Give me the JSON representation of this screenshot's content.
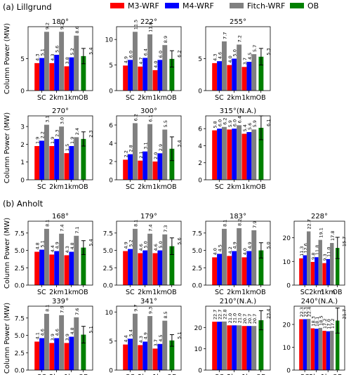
{
  "legend": [
    {
      "name": "M3-WRF",
      "color": "#ff0000"
    },
    {
      "name": "M4-WRF",
      "color": "#0000ff"
    },
    {
      "name": "Fitch-WRF",
      "color": "#808080"
    },
    {
      "name": "OB",
      "color": "#008000"
    }
  ],
  "sections": [
    {
      "label": "(a) Lillgrund"
    },
    {
      "label": "(b) Anholt"
    }
  ],
  "ylabel": "Column Power (MW)",
  "categories": [
    "SC",
    "2km",
    "1km",
    "OB"
  ],
  "chart_data": [
    {
      "type": "bar",
      "title": "180°",
      "ylim": [
        0,
        10
      ],
      "yticks": [
        0,
        5
      ],
      "series": [
        {
          "name": "M3-WRF",
          "values": [
            4.3,
            4.3,
            3.8
          ]
        },
        {
          "name": "M4-WRF",
          "values": [
            5.1,
            5.6,
            5.2
          ]
        },
        {
          "name": "Fitch-WRF",
          "values": [
            9.2,
            9.2,
            8.6
          ]
        },
        {
          "name": "OB",
          "values": [
            5.4
          ],
          "error": 1.2
        }
      ]
    },
    {
      "type": "bar",
      "title": "222°",
      "ylim": [
        0,
        12.5
      ],
      "yticks": [
        0,
        5,
        10
      ],
      "series": [
        {
          "name": "M3-WRF",
          "values": [
            4.9,
            4.7,
            4.0
          ]
        },
        {
          "name": "M4-WRF",
          "values": [
            6.0,
            6.4,
            6.0
          ]
        },
        {
          "name": "Fitch-WRF",
          "values": [
            11.5,
            11.0,
            8.9
          ]
        },
        {
          "name": "OB",
          "values": [
            6.2
          ],
          "error": 1.6
        }
      ]
    },
    {
      "type": "bar",
      "title": "255°",
      "ylim": [
        0,
        10
      ],
      "yticks": [
        0,
        5
      ],
      "series": [
        {
          "name": "M3-WRF",
          "values": [
            4.3,
            4.0,
            3.7
          ]
        },
        {
          "name": "M4-WRF",
          "values": [
            4.6,
            5.0,
            4.5
          ]
        },
        {
          "name": "Fitch-WRF",
          "values": [
            7.7,
            7.2,
            5.7
          ]
        },
        {
          "name": "OB",
          "values": [
            5.3
          ],
          "error": 1.3
        }
      ]
    },
    {
      "type": "bar",
      "title": "270°",
      "ylim": [
        0,
        3.6
      ],
      "yticks": [
        0,
        1,
        2,
        3
      ],
      "series": [
        {
          "name": "M3-WRF",
          "values": [
            1.9,
            1.9,
            1.5
          ]
        },
        {
          "name": "M4-WRF",
          "values": [
            2.2,
            2.3,
            1.9
          ]
        },
        {
          "name": "Fitch-WRF",
          "values": [
            3.1,
            3.0,
            2.4
          ]
        },
        {
          "name": "OB",
          "values": [
            2.3
          ],
          "error": 0.4
        }
      ]
    },
    {
      "type": "bar",
      "title": "300°",
      "ylim": [
        0,
        7
      ],
      "yticks": [
        0,
        2,
        4,
        6
      ],
      "series": [
        {
          "name": "M3-WRF",
          "values": [
            2.2,
            2.1,
            2.0
          ]
        },
        {
          "name": "M4-WRF",
          "values": [
            2.8,
            3.1,
            2.9
          ]
        },
        {
          "name": "Fitch-WRF",
          "values": [
            6.2,
            6.1,
            5.5
          ]
        },
        {
          "name": "OB",
          "values": [
            3.4
          ],
          "error": 1.3
        }
      ]
    },
    {
      "type": "bar",
      "title": "315°(N.A.)",
      "ylim": [
        0,
        7.5
      ],
      "yticks": [
        0,
        2,
        4,
        6
      ],
      "series": [
        {
          "name": "M3-WRF",
          "values": [
            5.8,
            5.9,
            5.4
          ]
        },
        {
          "name": "M4-WRF",
          "values": [
            6.0,
            6.0,
            5.6
          ]
        },
        {
          "name": "Fitch-WRF",
          "values": [
            6.2,
            6.4,
            5.9
          ]
        },
        {
          "name": "OB",
          "values": [
            6.1
          ],
          "error": 1.4
        }
      ]
    },
    {
      "type": "bar",
      "title": "168°",
      "ylim": [
        0,
        9.2
      ],
      "yticks": [
        0,
        2.5,
        5.0,
        7.5
      ],
      "series": [
        {
          "name": "M3-WRF",
          "values": [
            4.8,
            4.4,
            4.3
          ]
        },
        {
          "name": "M4-WRF",
          "values": [
            5.1,
            4.9,
            4.8
          ]
        },
        {
          "name": "Fitch-WRF",
          "values": [
            8.1,
            7.4,
            7.1
          ]
        },
        {
          "name": "OB",
          "values": [
            5.4
          ],
          "error": 1.0
        }
      ]
    },
    {
      "type": "bar",
      "title": "179°",
      "ylim": [
        0,
        9.2
      ],
      "yticks": [
        0,
        2.5,
        5.0,
        7.5
      ],
      "series": [
        {
          "name": "M3-WRF",
          "values": [
            4.9,
            4.6,
            4.6
          ]
        },
        {
          "name": "M4-WRF",
          "values": [
            5.2,
            5.0,
            5.0
          ]
        },
        {
          "name": "Fitch-WRF",
          "values": [
            8.1,
            7.4,
            7.3
          ]
        },
        {
          "name": "OB",
          "values": [
            5.6
          ],
          "error": 1.2
        }
      ]
    },
    {
      "type": "bar",
      "title": "183°",
      "ylim": [
        0,
        9.2
      ],
      "yticks": [
        0,
        2.5,
        5.0,
        7.5
      ],
      "series": [
        {
          "name": "M3-WRF",
          "values": [
            4.0,
            4.2,
            4.0
          ]
        },
        {
          "name": "M4-WRF",
          "values": [
            4.5,
            4.9,
            4.9
          ]
        },
        {
          "name": "Fitch-WRF",
          "values": [
            8.1,
            8.2,
            7.9
          ]
        },
        {
          "name": "OB",
          "values": [
            5.0
          ],
          "error": 1.1
        }
      ]
    },
    {
      "type": "bar",
      "title": "228°",
      "ylim": [
        0,
        27
      ],
      "yticks": [
        0,
        10,
        20
      ],
      "series": [
        {
          "name": "M3-WRF",
          "values": [
            11.3,
            9.8,
            9.3
          ]
        },
        {
          "name": "M4-WRF",
          "values": [
            12.6,
            11.8,
            11.0
          ]
        },
        {
          "name": "Fitch-WRF",
          "values": [
            22.7,
            19.1,
            17.8
          ]
        },
        {
          "name": "OB",
          "values": [
            15.7
          ],
          "error": 4.5
        }
      ]
    },
    {
      "type": "bar",
      "title": "339°",
      "ylim": [
        0,
        9.2
      ],
      "yticks": [
        0,
        2.5,
        5.0,
        7.5
      ],
      "series": [
        {
          "name": "M3-WRF",
          "values": [
            4.1,
            3.9,
            3.9
          ]
        },
        {
          "name": "M4-WRF",
          "values": [
            4.6,
            4.6,
            4.8
          ]
        },
        {
          "name": "Fitch-WRF",
          "values": [
            8.1,
            7.9,
            7.6
          ]
        },
        {
          "name": "OB",
          "values": [
            5.1
          ],
          "error": 1.2
        }
      ]
    },
    {
      "type": "bar",
      "title": "341°",
      "ylim": [
        0,
        11
      ],
      "yticks": [
        0,
        5,
        10
      ],
      "series": [
        {
          "name": "M3-WRF",
          "values": [
            4.4,
            4.3,
            3.7
          ]
        },
        {
          "name": "M4-WRF",
          "values": [
            5.4,
            4.9,
            4.5
          ]
        },
        {
          "name": "Fitch-WRF",
          "values": [
            9.7,
            9.3,
            8.5
          ]
        },
        {
          "name": "OB",
          "values": [
            5.1
          ],
          "error": 1.0
        }
      ]
    },
    {
      "type": "bar",
      "title": "210°(N.A.)",
      "ylim": [
        0,
        30
      ],
      "yticks": [
        0,
        10,
        20
      ],
      "series": [
        {
          "name": "M3-WRF",
          "values": [
            22.7,
            21.0,
            20.7
          ]
        },
        {
          "name": "M4-WRF",
          "values": [
            22.7,
            21.0,
            20.7
          ]
        },
        {
          "name": "Fitch-WRF",
          "values": [
            22.8,
            21.0,
            20.7
          ]
        },
        {
          "name": "OB",
          "values": [
            23.4
          ],
          "error": 4.5
        }
      ]
    },
    {
      "type": "bar",
      "title": "240°(N.A.)",
      "ylim": [
        0,
        28
      ],
      "yticks": [
        0,
        10,
        20
      ],
      "series": [
        {
          "name": "M3-WRF",
          "values": [
            22.3,
            18.3,
            17.2
          ]
        },
        {
          "name": "M4-WRF",
          "values": [
            22.3,
            18.1,
            17.0
          ]
        },
        {
          "name": "Fitch-WRF",
          "values": [
            22.4,
            18.5,
            17.2
          ]
        },
        {
          "name": "OB",
          "values": [
            21.7
          ],
          "error": 5.5
        }
      ]
    }
  ]
}
